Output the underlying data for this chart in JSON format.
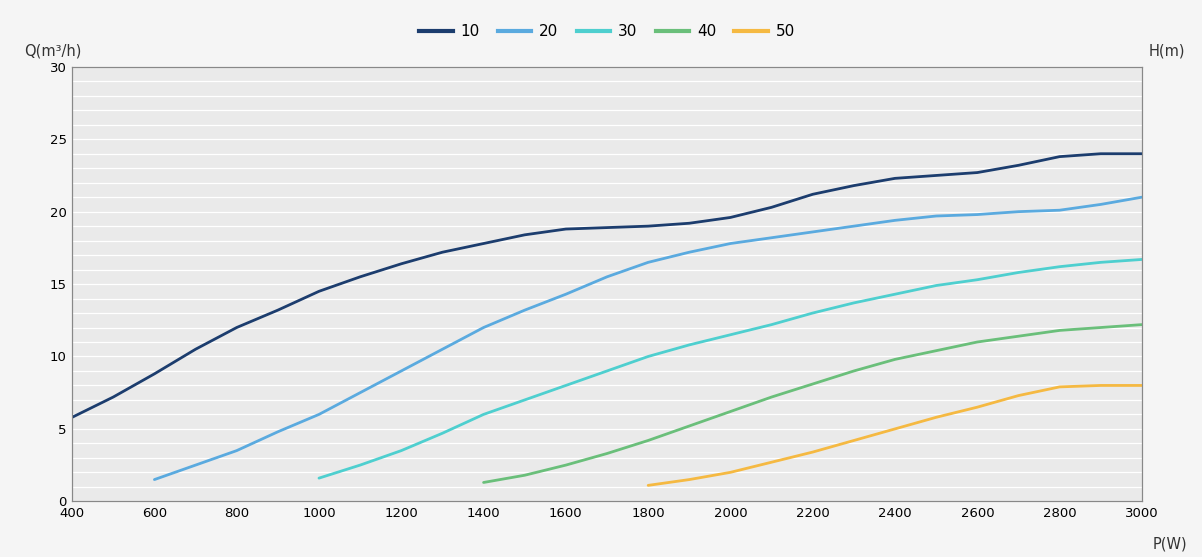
{
  "ylabel": "Q(m³/h)",
  "xlabel": "P(W)",
  "ylabel_right": "H(m)",
  "ylim": [
    0,
    30
  ],
  "xlim": [
    400,
    3000
  ],
  "yticks": [
    0,
    5,
    10,
    15,
    20,
    25,
    30
  ],
  "xticks": [
    400,
    600,
    800,
    1000,
    1200,
    1400,
    1600,
    1800,
    2000,
    2200,
    2400,
    2600,
    2800,
    3000
  ],
  "background_color": "#f5f5f5",
  "plot_bg_color": "#eaeaea",
  "grid_color": "#ffffff",
  "series": [
    {
      "label": "10",
      "color": "#1c3d6e",
      "x": [
        400,
        500,
        600,
        700,
        800,
        900,
        1000,
        1100,
        1200,
        1300,
        1400,
        1500,
        1600,
        1700,
        1800,
        1900,
        2000,
        2100,
        2200,
        2300,
        2400,
        2500,
        2600,
        2700,
        2800,
        2900,
        3000
      ],
      "y": [
        5.8,
        7.2,
        8.8,
        10.5,
        12.0,
        13.2,
        14.5,
        15.5,
        16.4,
        17.2,
        17.8,
        18.4,
        18.8,
        18.9,
        19.0,
        19.2,
        19.6,
        20.3,
        21.2,
        21.8,
        22.3,
        22.5,
        22.7,
        23.2,
        23.8,
        24.0,
        24.0
      ]
    },
    {
      "label": "20",
      "color": "#5aaadf",
      "x": [
        600,
        700,
        800,
        900,
        1000,
        1100,
        1200,
        1300,
        1400,
        1500,
        1600,
        1700,
        1800,
        1900,
        2000,
        2100,
        2200,
        2300,
        2400,
        2500,
        2600,
        2700,
        2800,
        2900,
        3000
      ],
      "y": [
        1.5,
        2.5,
        3.5,
        4.8,
        6.0,
        7.5,
        9.0,
        10.5,
        12.0,
        13.2,
        14.3,
        15.5,
        16.5,
        17.2,
        17.8,
        18.2,
        18.6,
        19.0,
        19.4,
        19.7,
        19.8,
        20.0,
        20.1,
        20.5,
        21.0
      ]
    },
    {
      "label": "30",
      "color": "#4ecfcf",
      "x": [
        1000,
        1100,
        1200,
        1300,
        1400,
        1500,
        1600,
        1700,
        1800,
        1900,
        2000,
        2100,
        2200,
        2300,
        2400,
        2500,
        2600,
        2700,
        2800,
        2900,
        3000
      ],
      "y": [
        1.6,
        2.5,
        3.5,
        4.7,
        6.0,
        7.0,
        8.0,
        9.0,
        10.0,
        10.8,
        11.5,
        12.2,
        13.0,
        13.7,
        14.3,
        14.9,
        15.3,
        15.8,
        16.2,
        16.5,
        16.7
      ]
    },
    {
      "label": "40",
      "color": "#6abf7a",
      "x": [
        1400,
        1500,
        1600,
        1700,
        1800,
        1900,
        2000,
        2100,
        2200,
        2300,
        2400,
        2500,
        2600,
        2700,
        2800,
        2900,
        3000
      ],
      "y": [
        1.3,
        1.8,
        2.5,
        3.3,
        4.2,
        5.2,
        6.2,
        7.2,
        8.1,
        9.0,
        9.8,
        10.4,
        11.0,
        11.4,
        11.8,
        12.0,
        12.2
      ]
    },
    {
      "label": "50",
      "color": "#f5b942",
      "x": [
        1800,
        1900,
        2000,
        2100,
        2200,
        2300,
        2400,
        2500,
        2600,
        2700,
        2800,
        2900,
        3000
      ],
      "y": [
        1.1,
        1.5,
        2.0,
        2.7,
        3.4,
        4.2,
        5.0,
        5.8,
        6.5,
        7.3,
        7.9,
        8.0,
        8.0
      ]
    }
  ]
}
